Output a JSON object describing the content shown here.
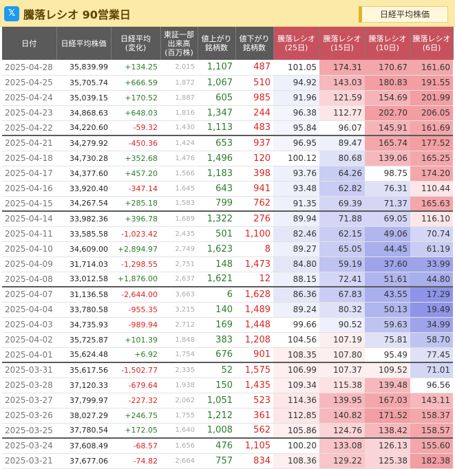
{
  "header": {
    "icon_name": "x-logo-icon",
    "title": "騰落レシオ 90営業日",
    "right_button": "日経平均株価"
  },
  "columns": [
    "日付",
    "日経平均株価",
    "日経平均\n(変化)",
    "東証一部\n出来高\n(百万株)",
    "値上がり\n銘柄数",
    "値下がり\n銘柄数",
    "騰落レシオ\n(25日)",
    "騰落レシオ\n(15日)",
    "騰落レシオ\n(10日)",
    "騰落レシオ\n(6日)"
  ],
  "colors": {
    "header_bg": "#5a5a5a",
    "header_hot": "#c7525e",
    "up": "#2a7d2a",
    "down": "#dd2222"
  },
  "rows": [
    {
      "date": "2025-04-28",
      "price": "35,839.99",
      "change": "+134.25",
      "volume": "2,015",
      "up": "1,107",
      "down": "487",
      "r25": "101.05",
      "r15": "174.31",
      "r10": "170.67",
      "r6": "161.60",
      "c25": "#ffffff",
      "c15": "#f4a7ab",
      "c10": "#f4a7ab",
      "c6": "#f4a7ab"
    },
    {
      "date": "2025-04-25",
      "price": "35,705.74",
      "change": "+666.59",
      "volume": "1,872",
      "up": "1,067",
      "down": "510",
      "r25": "94.92",
      "r15": "143.03",
      "r10": "180.83",
      "r6": "191.55",
      "c25": "#eef0fb",
      "c15": "#f6b8bc",
      "c10": "#f29ea3",
      "c6": "#f29ea3"
    },
    {
      "date": "2025-04-24",
      "price": "35,039.15",
      "change": "+170.52",
      "volume": "1,887",
      "up": "605",
      "down": "985",
      "r25": "91.96",
      "r15": "121.59",
      "r10": "154.69",
      "r6": "201.99",
      "c25": "#eef0fb",
      "c15": "#fad4d6",
      "c10": "#f6b4b8",
      "c6": "#f29ea3"
    },
    {
      "date": "2025-04-23",
      "price": "34,868.63",
      "change": "+648.03",
      "volume": "1,816",
      "up": "1,347",
      "down": "244",
      "r25": "96.38",
      "r15": "112.77",
      "r10": "202.70",
      "r6": "206.05",
      "c25": "#f4f5fc",
      "c15": "#fde6e7",
      "c10": "#f29ea3",
      "c6": "#f29ea3"
    },
    {
      "date": "2025-04-22",
      "price": "34,220.60",
      "change": "-59.32",
      "volume": "1,430",
      "up": "1,113",
      "down": "483",
      "r25": "95.84",
      "r15": "96.07",
      "r10": "145.91",
      "r6": "161.69",
      "c25": "#f4f5fc",
      "c15": "#ffffff",
      "c10": "#f6b4b8",
      "c6": "#f4a7ab"
    },
    {
      "date": "2025-04-21",
      "price": "34,279.92",
      "change": "-450.36",
      "volume": "1,424",
      "up": "653",
      "down": "937",
      "r25": "96.95",
      "r15": "89.47",
      "r10": "165.74",
      "r6": "177.52",
      "c25": "#f4f5fc",
      "c15": "#eef0fb",
      "c10": "#f4a7ab",
      "c6": "#f29ea3"
    },
    {
      "date": "2025-04-18",
      "price": "34,730.28",
      "change": "+352.68",
      "volume": "1,476",
      "up": "1,496",
      "down": "120",
      "r25": "100.12",
      "r15": "80.68",
      "r10": "139.06",
      "r6": "165.25",
      "c25": "#ffffff",
      "c15": "#dfe2f7",
      "c10": "#f6b8bc",
      "c6": "#f4a7ab"
    },
    {
      "date": "2025-04-17",
      "price": "34,377.60",
      "change": "+457.20",
      "volume": "1,566",
      "up": "1,183",
      "down": "398",
      "r25": "93.76",
      "r15": "64.26",
      "r10": "98.75",
      "r6": "174.20",
      "c25": "#eef0fb",
      "c15": "#c9cdf3",
      "c10": "#ffffff",
      "c6": "#f4a7ab"
    },
    {
      "date": "2025-04-16",
      "price": "33,920.40",
      "change": "-347.14",
      "volume": "1,645",
      "up": "643",
      "down": "941",
      "r25": "93.48",
      "r15": "62.82",
      "r10": "76.31",
      "r6": "110.44",
      "c25": "#eef0fb",
      "c15": "#c9cdf3",
      "c10": "#dfe2f7",
      "c6": "#fde6e7"
    },
    {
      "date": "2025-04-15",
      "price": "34,267.54",
      "change": "+285.18",
      "volume": "1,583",
      "up": "799",
      "down": "762",
      "r25": "91.35",
      "r15": "69.39",
      "r10": "71.37",
      "r6": "165.63",
      "c25": "#eef0fb",
      "c15": "#d3d7f5",
      "c10": "#d3d7f5",
      "c6": "#f4a7ab"
    },
    {
      "date": "2025-04-14",
      "price": "33,982.36",
      "change": "+396.78",
      "volume": "1,689",
      "up": "1,322",
      "down": "276",
      "r25": "89.94",
      "r15": "71.88",
      "r10": "69.05",
      "r6": "116.10",
      "c25": "#eef0fb",
      "c15": "#d3d7f5",
      "c10": "#d3d7f5",
      "c6": "#fde6e7"
    },
    {
      "date": "2025-04-11",
      "price": "33,585.58",
      "change": "-1,023.42",
      "volume": "2,435",
      "up": "501",
      "down": "1,100",
      "r25": "82.46",
      "r15": "62.15",
      "r10": "49.06",
      "r6": "70.74",
      "c25": "#e4e6f8",
      "c15": "#c9cdf3",
      "c10": "#b0b5ee",
      "c6": "#d3d7f5"
    },
    {
      "date": "2025-04-10",
      "price": "34,609.00",
      "change": "+2,894.97",
      "volume": "2,749",
      "up": "1,623",
      "down": "8",
      "r25": "89.27",
      "r15": "65.05",
      "r10": "44.45",
      "r6": "61.19",
      "c25": "#eef0fb",
      "c15": "#c9cdf3",
      "c10": "#a9aeec",
      "c6": "#c9cdf3"
    },
    {
      "date": "2025-04-09",
      "price": "31,714.03",
      "change": "-1,298.55",
      "volume": "2,751",
      "up": "148",
      "down": "1,473",
      "r25": "84.80",
      "r15": "59.19",
      "r10": "37.60",
      "r6": "33.99",
      "c25": "#e4e6f8",
      "c15": "#bfc3f1",
      "c10": "#9ea3ea",
      "c6": "#9ea3ea"
    },
    {
      "date": "2025-04-08",
      "price": "33,012.58",
      "change": "+1,876.00",
      "volume": "2,637",
      "up": "1,621",
      "down": "12",
      "r25": "88.15",
      "r15": "72.41",
      "r10": "51.61",
      "r6": "44.80",
      "c25": "#eef0fb",
      "c15": "#d3d7f5",
      "c10": "#b0b5ee",
      "c6": "#a9aeec"
    },
    {
      "date": "2025-04-07",
      "price": "31,136.58",
      "change": "-2,644.00",
      "volume": "3,663",
      "up": "6",
      "down": "1,628",
      "r25": "86.36",
      "r15": "67.83",
      "r10": "43.55",
      "r6": "17.29",
      "c25": "#e4e6f8",
      "c15": "#c9cdf3",
      "c10": "#a9aeec",
      "c6": "#8e94e6"
    },
    {
      "date": "2025-04-04",
      "price": "33,780.58",
      "change": "-955.35",
      "volume": "3,215",
      "up": "140",
      "down": "1,489",
      "r25": "89.24",
      "r15": "80.32",
      "r10": "50.13",
      "r6": "19.49",
      "c25": "#eef0fb",
      "c15": "#dfe2f7",
      "c10": "#b0b5ee",
      "c6": "#8e94e6"
    },
    {
      "date": "2025-04-03",
      "price": "34,735.93",
      "change": "-989.94",
      "volume": "2,712",
      "up": "169",
      "down": "1,448",
      "r25": "99.66",
      "r15": "90.52",
      "r10": "59.63",
      "r6": "34.99",
      "c25": "#ffffff",
      "c15": "#eef0fb",
      "c10": "#bfc3f1",
      "c6": "#9ea3ea"
    },
    {
      "date": "2025-04-02",
      "price": "35,725.87",
      "change": "+101.39",
      "volume": "1,848",
      "up": "383",
      "down": "1,208",
      "r25": "104.56",
      "r15": "107.19",
      "r10": "75.81",
      "r6": "58.70",
      "c25": "#ffffff",
      "c15": "#fdeeef",
      "c10": "#dfe2f7",
      "c6": "#bfc3f1"
    },
    {
      "date": "2025-04-01",
      "price": "35,624.48",
      "change": "+6.92",
      "volume": "1,754",
      "up": "676",
      "down": "901",
      "r25": "108.35",
      "r15": "107.80",
      "r10": "95.49",
      "r6": "77.45",
      "c25": "#fdeeef",
      "c15": "#fdeeef",
      "c10": "#ffffff",
      "c6": "#dfe2f7"
    },
    {
      "date": "2025-03-31",
      "price": "35,617.56",
      "change": "-1,502.77",
      "volume": "2,335",
      "up": "52",
      "down": "1,575",
      "r25": "106.99",
      "r15": "107.37",
      "r10": "109.52",
      "r6": "71.01",
      "c25": "#fdeeef",
      "c15": "#fdeeef",
      "c10": "#fdeeef",
      "c6": "#d3d7f5"
    },
    {
      "date": "2025-03-28",
      "price": "37,120.33",
      "change": "-679.64",
      "volume": "1,938",
      "up": "150",
      "down": "1,435",
      "r25": "109.34",
      "r15": "115.38",
      "r10": "139.48",
      "r6": "96.56",
      "c25": "#fdeeef",
      "c15": "#fde1e3",
      "c10": "#f6b8bc",
      "c6": "#ffffff"
    },
    {
      "date": "2025-03-27",
      "price": "37,799.97",
      "change": "-227.32",
      "volume": "2,062",
      "up": "1,051",
      "down": "523",
      "r25": "114.36",
      "r15": "139.95",
      "r10": "167.03",
      "r6": "143.11",
      "c25": "#fde6e7",
      "c15": "#f6b8bc",
      "c10": "#f4a7ab",
      "c6": "#f6b8bc"
    },
    {
      "date": "2025-03-26",
      "price": "38,027.29",
      "change": "+246.75",
      "volume": "1,755",
      "up": "1,212",
      "down": "361",
      "r25": "112.85",
      "r15": "140.82",
      "r10": "171.52",
      "r6": "158.37",
      "c25": "#fde6e7",
      "c15": "#f6b8bc",
      "c10": "#f29ea3",
      "c6": "#f4a7ab"
    },
    {
      "date": "2025-03-25",
      "price": "37,780.54",
      "change": "+172.05",
      "volume": "1,640",
      "up": "1,008",
      "down": "562",
      "r25": "105.86",
      "r15": "124.76",
      "r10": "138.42",
      "r6": "158.57",
      "c25": "#fdeeef",
      "c15": "#fad4d6",
      "c10": "#f6b8bc",
      "c6": "#f4a7ab"
    },
    {
      "date": "2025-03-24",
      "price": "37,608.49",
      "change": "-68.57",
      "volume": "1,656",
      "up": "476",
      "down": "1,105",
      "r25": "100.20",
      "r15": "133.08",
      "r10": "126.13",
      "r6": "155.60",
      "c25": "#ffffff",
      "c15": "#f8c6c9",
      "c10": "#fad4d6",
      "c6": "#f4a7ab"
    },
    {
      "date": "2025-03-21",
      "price": "37,677.06",
      "change": "-74.82",
      "volume": "2,664",
      "up": "757",
      "down": "834",
      "r25": "108.36",
      "r15": "129.22",
      "r10": "125.38",
      "r6": "182.38",
      "c25": "#fdeeef",
      "c15": "#f8c6c9",
      "c10": "#fad4d6",
      "c6": "#f29ea3"
    }
  ]
}
